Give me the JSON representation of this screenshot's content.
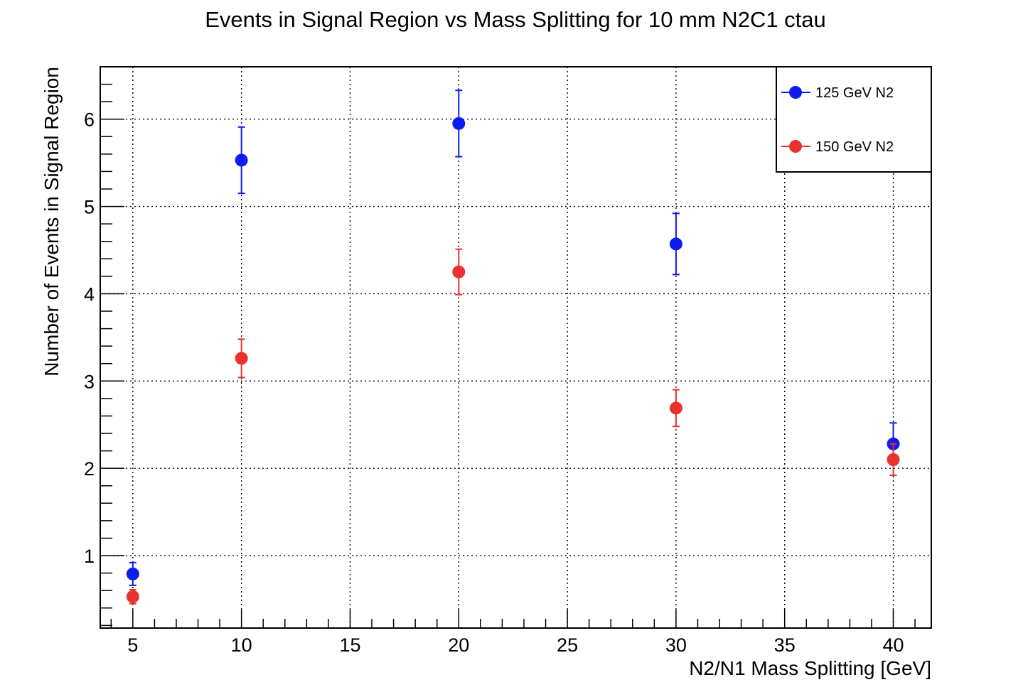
{
  "chart_data": {
    "type": "scatter",
    "title": "Events in Signal Region vs Mass Splitting for 10 mm N2C1 ctau",
    "xlabel": "N2/N1 Mass Splitting [GeV]",
    "ylabel": "Number of Events in Signal Region",
    "xlim": [
      3.5,
      41.75
    ],
    "ylim": [
      0.17,
      6.6
    ],
    "x_ticks": [
      5,
      10,
      15,
      20,
      25,
      30,
      35,
      40
    ],
    "y_ticks": [
      1,
      2,
      3,
      4,
      5,
      6
    ],
    "grid": true,
    "legend_position": "top-right",
    "series": [
      {
        "name": "125 GeV N2",
        "color": "#0a1cf0",
        "points": [
          {
            "x": 5,
            "y": 0.79,
            "err": 0.13
          },
          {
            "x": 10,
            "y": 5.53,
            "err": 0.38
          },
          {
            "x": 20,
            "y": 5.95,
            "err": 0.38
          },
          {
            "x": 30,
            "y": 4.57,
            "err": 0.35
          },
          {
            "x": 40,
            "y": 2.28,
            "err": 0.24
          }
        ]
      },
      {
        "name": "150 GeV N2",
        "color": "#e8322c",
        "points": [
          {
            "x": 5,
            "y": 0.53,
            "err": 0.08
          },
          {
            "x": 10,
            "y": 3.26,
            "err": 0.22
          },
          {
            "x": 20,
            "y": 4.25,
            "err": 0.26
          },
          {
            "x": 30,
            "y": 2.69,
            "err": 0.21
          },
          {
            "x": 40,
            "y": 2.1,
            "err": 0.18
          }
        ]
      }
    ]
  }
}
